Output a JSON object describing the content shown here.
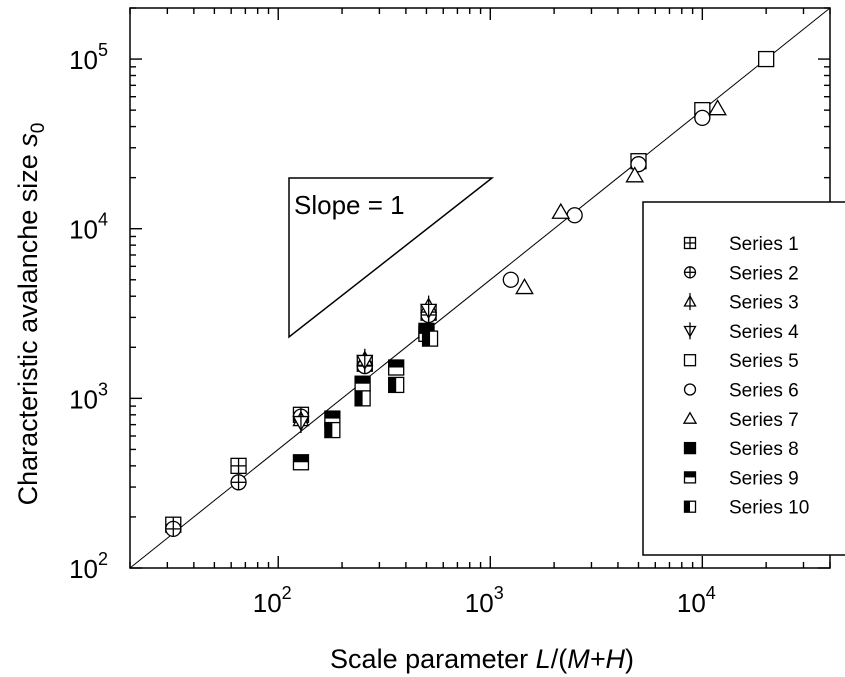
{
  "chart_data": {
    "type": "scatter",
    "x_scale": "log",
    "y_scale": "log",
    "xlim": [
      20,
      40000
    ],
    "ylim": [
      100,
      200000
    ],
    "xlabel_plain": "Scale parameter ",
    "xlabel_italic_1": "L",
    "xlabel_mid": "/(",
    "xlabel_italic_2": "M+H",
    "xlabel_end": ")",
    "ylabel_plain": "Characteristic avalanche size ",
    "ylabel_italic": "s",
    "ylabel_sub": "0",
    "x_tick_base": "10",
    "x_ticks": [
      {
        "value": 100,
        "exp": "2"
      },
      {
        "value": 1000,
        "exp": "3"
      },
      {
        "value": 10000,
        "exp": "4"
      }
    ],
    "y_tick_base": "10",
    "y_ticks": [
      {
        "value": 100,
        "exp": "2"
      },
      {
        "value": 1000,
        "exp": "3"
      },
      {
        "value": 10000,
        "exp": "4"
      },
      {
        "value": 100000,
        "exp": "5"
      }
    ],
    "fit_line": {
      "slope": 1,
      "intercept_ratio": 5
    },
    "annotation": {
      "text": "Slope = 1"
    },
    "legend_position": "right",
    "series": [
      {
        "name": "Series 1",
        "marker": "square-plus",
        "points": [
          [
            32,
            180
          ],
          [
            65,
            400
          ],
          [
            128,
            800
          ],
          [
            256,
            1600
          ],
          [
            512,
            3200
          ]
        ]
      },
      {
        "name": "Series 2",
        "marker": "circle-plus",
        "points": [
          [
            32,
            170
          ],
          [
            65,
            320
          ],
          [
            128,
            780
          ],
          [
            256,
            1550
          ],
          [
            512,
            3100
          ]
        ]
      },
      {
        "name": "Series 3",
        "marker": "triangle-up-line",
        "points": [
          [
            128,
            750
          ],
          [
            256,
            1700
          ],
          [
            512,
            3500
          ]
        ]
      },
      {
        "name": "Series 4",
        "marker": "triangle-down-line",
        "points": [
          [
            128,
            720
          ],
          [
            256,
            1650
          ],
          [
            512,
            3300
          ]
        ]
      },
      {
        "name": "Series 5",
        "marker": "square",
        "points": [
          [
            5000,
            25000
          ],
          [
            10000,
            50000
          ],
          [
            20000,
            100000
          ]
        ]
      },
      {
        "name": "Series 6",
        "marker": "circle",
        "points": [
          [
            1250,
            5000
          ],
          [
            2500,
            12000
          ],
          [
            5000,
            24000
          ],
          [
            10000,
            45000
          ]
        ]
      },
      {
        "name": "Series 7",
        "marker": "triangle-up",
        "points": [
          [
            1450,
            4500
          ],
          [
            2150,
            12500
          ],
          [
            4800,
            20500
          ],
          [
            11800,
            51000
          ]
        ]
      },
      {
        "name": "Series 8",
        "marker": "square-filled",
        "points": [
          [
            500,
            2500
          ]
        ]
      },
      {
        "name": "Series 9",
        "marker": "square-top-half",
        "points": [
          [
            128,
            420
          ],
          [
            180,
            760
          ],
          [
            250,
            1220
          ],
          [
            360,
            1520
          ],
          [
            500,
            2400
          ]
        ]
      },
      {
        "name": "Series 10",
        "marker": "square-left-half",
        "points": [
          [
            180,
            650
          ],
          [
            250,
            1000
          ],
          [
            360,
            1200
          ],
          [
            520,
            2250
          ]
        ]
      }
    ]
  }
}
